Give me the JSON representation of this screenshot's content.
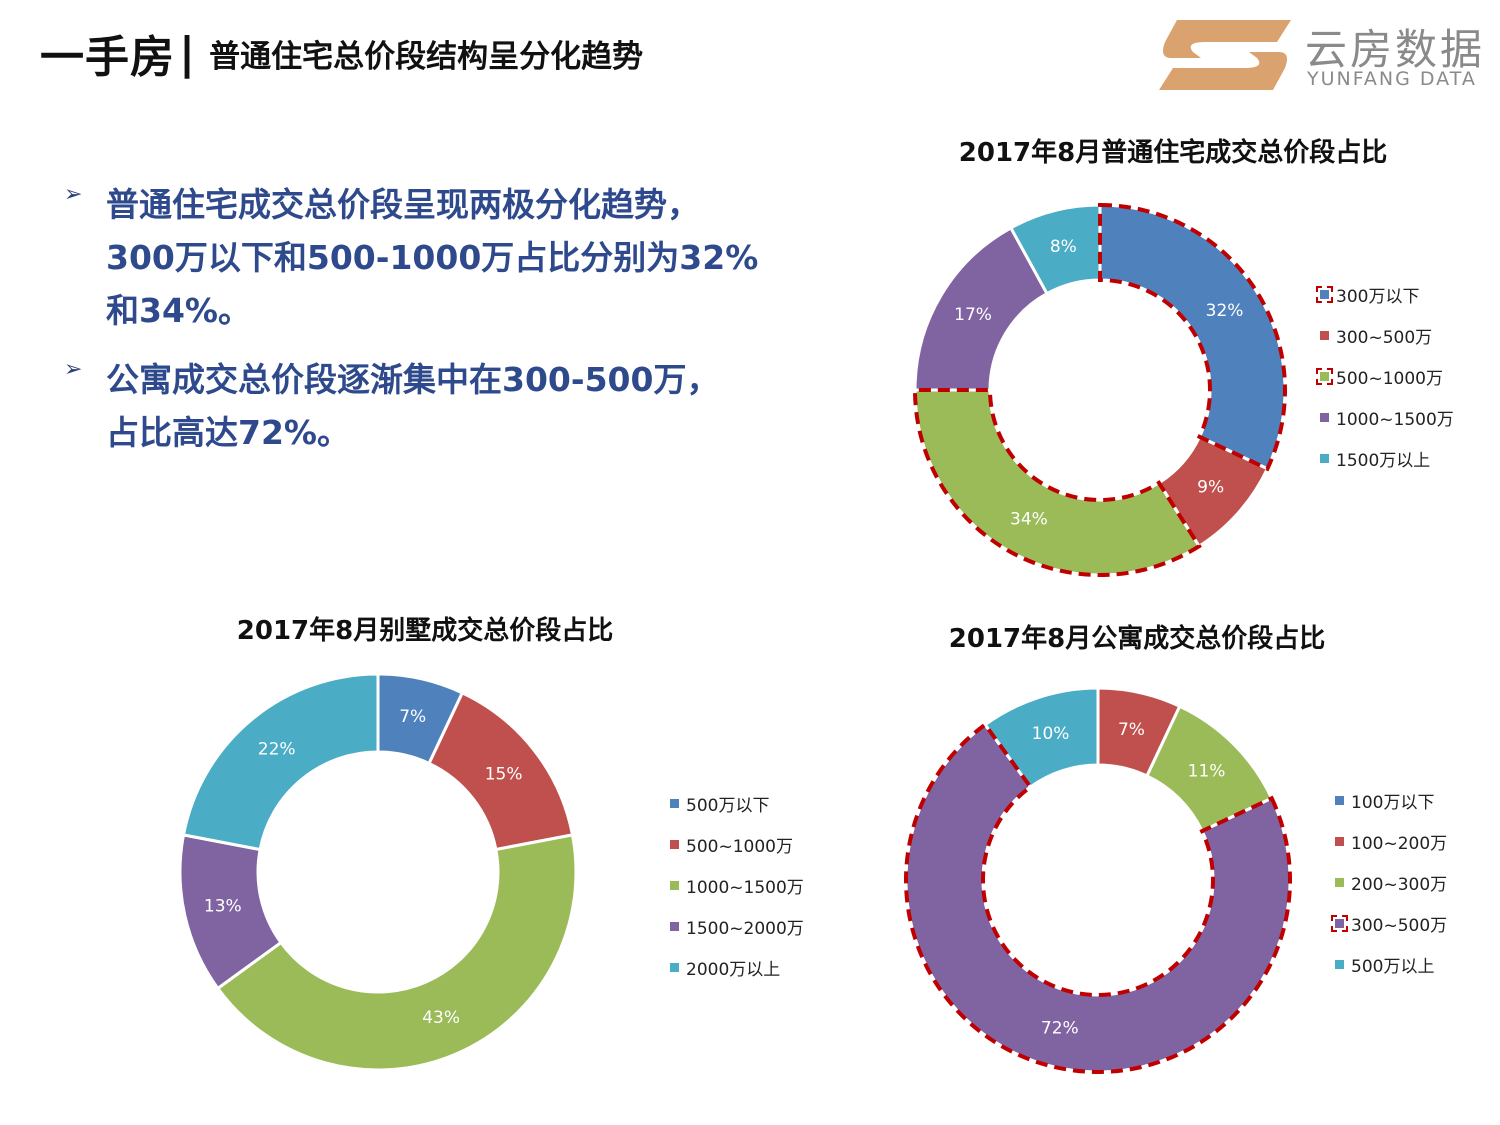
{
  "header": {
    "title": "一手房",
    "separator": "|",
    "subtitle": "普通住宅总价段结构呈分化趋势"
  },
  "logo": {
    "name_cn": "云房数据",
    "name_en": "YUNFANG DATA",
    "colors": {
      "mark": "#d9a26f",
      "text": "#8a8a8a"
    }
  },
  "bullets": [
    {
      "lines": [
        "普通住宅成交总价段呈现两极分化趋势，",
        "300万以下和500-1000万占比分别为32%",
        "和34%。"
      ]
    },
    {
      "lines": [
        "公寓成交总价段逐渐集中在300-500万，",
        "占比高达72%。"
      ]
    }
  ],
  "bullet_marker": "➢",
  "chart_data": [
    {
      "type": "pie",
      "variant": "donut",
      "title": "2017年8月普通住宅成交总价段占比",
      "categories": [
        "300万以下",
        "300~500万",
        "500~1000万",
        "1000~1500万",
        "1500万以上"
      ],
      "values": [
        32,
        9,
        34,
        17,
        8
      ],
      "labels": [
        "32%",
        "9%",
        "34%",
        "17%",
        "8%"
      ],
      "colors": [
        "#4f81bd",
        "#c0504d",
        "#9bbb59",
        "#8064a2",
        "#4bacc6"
      ],
      "highlighted": [
        "300万以下",
        "500~1000万"
      ],
      "highlight_color": "#c00000",
      "legend_position": "right"
    },
    {
      "type": "pie",
      "variant": "donut",
      "title": "2017年8月别墅成交总价段占比",
      "categories": [
        "500万以下",
        "500~1000万",
        "1000~1500万",
        "1500~2000万",
        "2000万以上"
      ],
      "values": [
        7,
        15,
        43,
        13,
        22
      ],
      "labels": [
        "7%",
        "15%",
        "43%",
        "13%",
        "22%"
      ],
      "colors": [
        "#4f81bd",
        "#c0504d",
        "#9bbb59",
        "#8064a2",
        "#4bacc6"
      ],
      "highlighted": [],
      "highlight_color": "#c00000",
      "legend_position": "right"
    },
    {
      "type": "pie",
      "variant": "donut",
      "title": "2017年8月公寓成交总价段占比",
      "categories": [
        "100万以下",
        "100~200万",
        "200~300万",
        "300~500万",
        "500万以上"
      ],
      "values": [
        0,
        7,
        11,
        72,
        10
      ],
      "labels": [
        "",
        "7%",
        "11%",
        "72%",
        "10%"
      ],
      "colors": [
        "#4f81bd",
        "#c0504d",
        "#9bbb59",
        "#8064a2",
        "#4bacc6"
      ],
      "highlighted": [
        "300~500万"
      ],
      "highlight_color": "#c00000",
      "legend_position": "right"
    }
  ]
}
